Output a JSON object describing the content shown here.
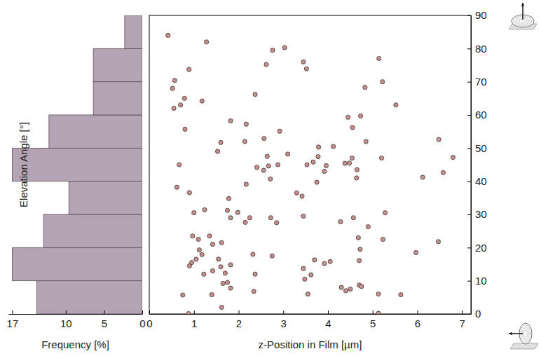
{
  "chart_data": [
    {
      "type": "histogram",
      "orientation": "horizontal",
      "bins": [
        0,
        10,
        20,
        30,
        40,
        50,
        60,
        70,
        80,
        90
      ],
      "values": [
        13.8,
        17.0,
        12.9,
        9.6,
        17.0,
        12.2,
        6.4,
        6.4,
        2.3
      ],
      "color": "#b3a3b3",
      "xlabel": "Frequency [%]",
      "xlim": [
        0,
        17.5
      ],
      "xticks": [
        0,
        5,
        10,
        17
      ],
      "ylim": [
        0,
        90
      ],
      "tick_labels": "x"
    },
    {
      "type": "scatter",
      "marker": "circle",
      "color": "#c98f8e",
      "xlabel": "z-Position in Film [µm]",
      "ylabel": "Elevation Angle [°]",
      "xlim": [
        0,
        7.2
      ],
      "xticks": [
        0,
        1,
        2,
        3,
        4,
        5,
        6,
        7
      ],
      "ylim": [
        0,
        90
      ],
      "yticks": [
        0,
        10,
        20,
        30,
        40,
        50,
        60,
        70,
        80,
        90
      ],
      "x": [
        0.42,
        1.28,
        2.76,
        3.03,
        2.62,
        3.45,
        3.52,
        5.14,
        5.22,
        0.57,
        0.52,
        0.89,
        1.18,
        0.79,
        0.7,
        0.55,
        2.37,
        4.83,
        5.52,
        4.45,
        4.73,
        4.55,
        0.8,
        1.82,
        2.17,
        2.92,
        1.6,
        1.53,
        2.14,
        2.57,
        3.79,
        4.12,
        4.85,
        6.48,
        6.8,
        2.64,
        3.1,
        3.78,
        4.54,
        5.2,
        3.67,
        3.53,
        2.88,
        2.67,
        2.41,
        2.56,
        3.96,
        3.92,
        4.38,
        4.48,
        4.65,
        4.64,
        2.71,
        3.75,
        2.17,
        0.62,
        0.67,
        6.58,
        6.12,
        3.3,
        3.42,
        1.78,
        0.9,
        1.24,
        1.75,
        1.82,
        1.98,
        2.25,
        2.15,
        2.72,
        2.85,
        3.45,
        4.28,
        4.57,
        4.9,
        5.28,
        1,
        0.97,
        1.1,
        1.12,
        1.35,
        1.42,
        1.62,
        1.55,
        1.18,
        1.05,
        0.9,
        0.95,
        1.22,
        1.42,
        1.6,
        1.7,
        1.82,
        1.65,
        1.75,
        1.82,
        2.32,
        2.37,
        2.75,
        2.34,
        1.4,
        1.62,
        3.45,
        3.62,
        3.48,
        3.7,
        3.92,
        4.05,
        4.7,
        4.72,
        4.68,
        5.23,
        5.97,
        6.47,
        4.3,
        4.4,
        4.5,
        4.7,
        4.75,
        5.13,
        0.88,
        0.75,
        3.55,
        5.13,
        5.63
      ],
      "values": [
        84,
        82,
        79.5,
        80.3,
        75.2,
        76,
        73.9,
        77,
        70,
        70.4,
        68,
        73.7,
        64.2,
        65,
        63,
        62,
        66.2,
        68.3,
        63,
        59.3,
        59.7,
        56.2,
        55.7,
        58.2,
        57.2,
        55.1,
        51.7,
        49,
        52,
        52.9,
        50.3,
        50.5,
        52,
        52.6,
        47.2,
        47.5,
        48.2,
        47.4,
        47,
        47,
        45.8,
        45,
        45,
        44.6,
        44.2,
        43.3,
        44.7,
        43,
        45.4,
        45.5,
        43.5,
        41,
        40.7,
        39.7,
        39.1,
        38.2,
        45,
        42.6,
        41.2,
        36.5,
        35.5,
        34.8,
        36.6,
        31.4,
        31.2,
        29,
        30.6,
        29,
        27.6,
        29,
        27.5,
        29.5,
        27.8,
        29,
        26.3,
        30.5,
        30.5,
        23.5,
        22.5,
        19.3,
        23.5,
        21,
        21.5,
        16.5,
        17.9,
        16.5,
        14.5,
        15.5,
        12,
        13,
        14.2,
        12.3,
        14.8,
        9.2,
        9.5,
        7.8,
        18,
        12,
        17.5,
        6.8,
        5.8,
        2,
        13.7,
        11.8,
        10.5,
        16.3,
        15.2,
        15.8,
        16.1,
        19.5,
        23,
        22.5,
        18.5,
        21.8,
        8,
        7,
        7.5,
        8.7,
        8.3,
        0.2,
        0.1,
        5.7,
        6,
        6,
        5.8
      ]
    }
  ]
}
